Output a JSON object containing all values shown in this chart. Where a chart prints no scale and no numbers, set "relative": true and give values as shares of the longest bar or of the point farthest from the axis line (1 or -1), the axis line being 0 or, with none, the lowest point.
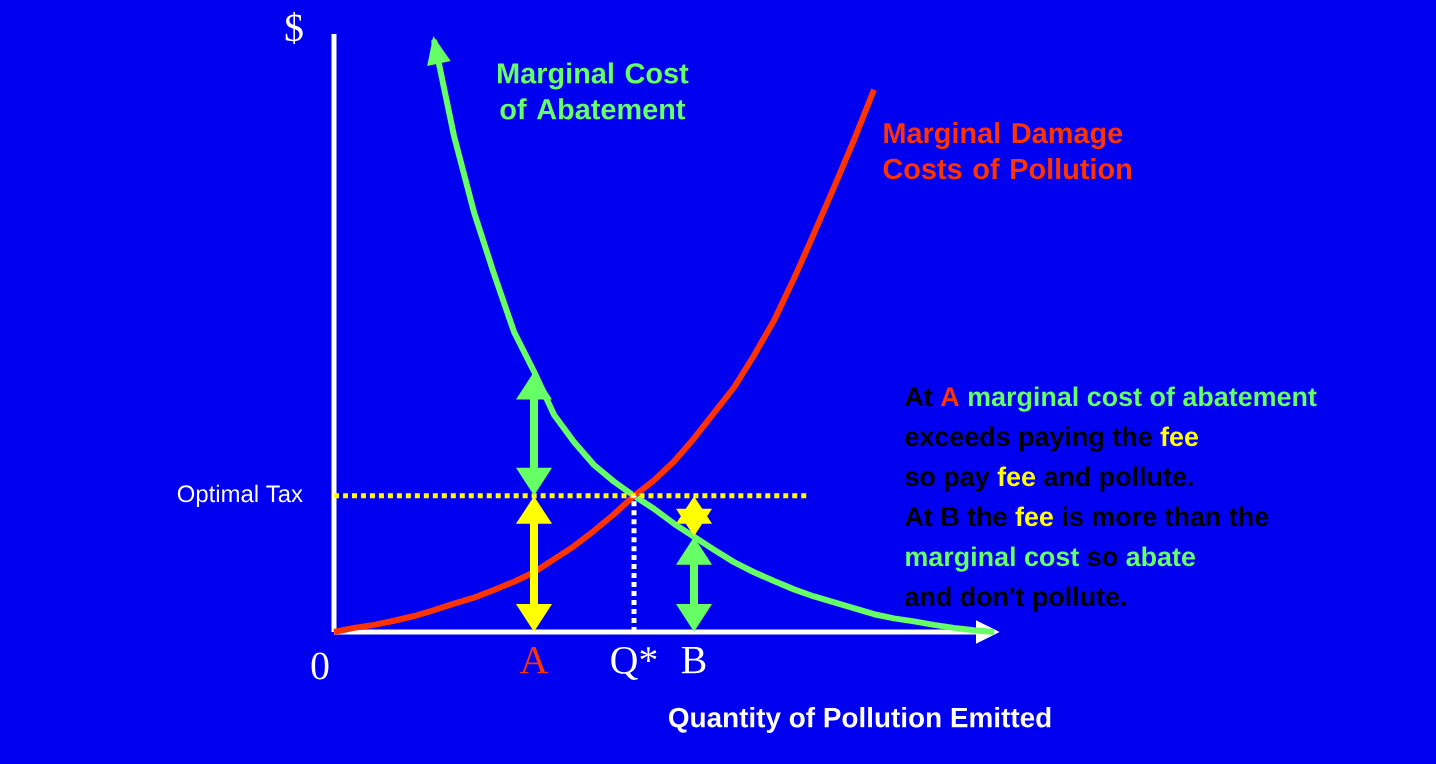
{
  "chart_data": {
    "type": "line",
    "relative": true,
    "xlabel": "Quantity of Pollution Emitted",
    "categories": [
      null,
      null,
      null,
      null,
      null,
      null,
      null,
      null,
      null,
      null,
      "A",
      null,
      null,
      null,
      null,
      "Q*",
      null,
      null,
      "B",
      null,
      null,
      null,
      null,
      null,
      null,
      null,
      null,
      null,
      null,
      null,
      null,
      null,
      null,
      null
    ],
    "series": [
      {
        "name": "Marginal Cost of Abatement",
        "color": "#66ff66",
        "values": [
          null,
          null,
          null,
          null,
          null,
          1.0,
          0.838,
          0.709,
          0.605,
          0.507,
          0.44,
          0.367,
          0.321,
          0.282,
          0.254,
          0.23,
          0.208,
          0.183,
          0.161,
          0.139,
          0.118,
          0.101,
          0.086,
          0.072,
          0.06,
          0.05,
          0.04,
          0.03,
          0.023,
          0.018,
          0.012,
          0.007,
          0.003,
          0
        ]
      },
      {
        "name": "Marginal Damage Costs of Pollution",
        "color": "#ff3300",
        "values": [
          0,
          0.007,
          0.012,
          0.019,
          0.027,
          0.037,
          0.048,
          0.058,
          0.071,
          0.085,
          0.101,
          0.123,
          0.145,
          0.171,
          0.199,
          0.23,
          0.256,
          0.288,
          0.327,
          0.37,
          0.413,
          0.467,
          0.526,
          0.597,
          0.673,
          0.751,
          0.831,
          0.916,
          null,
          null,
          null,
          null,
          null,
          null
        ]
      }
    ],
    "ref_lines": [
      {
        "axis": "y",
        "value": 0.23,
        "label": "Optimal Tax",
        "color": "#ffff00",
        "line_style": "dotted"
      },
      {
        "axis": "x",
        "value": "Q*",
        "color": "#ffffff",
        "line_style": "dotted"
      }
    ],
    "annotations": [
      "0",
      "$",
      "At",
      "A",
      "marginal cost of abatement",
      "exceeds paying the",
      "fee",
      "so pay",
      "fee",
      "and pollute.",
      "At B the",
      "fee",
      "is more than the",
      "marginal cost",
      "so",
      "abate",
      "and don't pollute."
    ]
  }
}
